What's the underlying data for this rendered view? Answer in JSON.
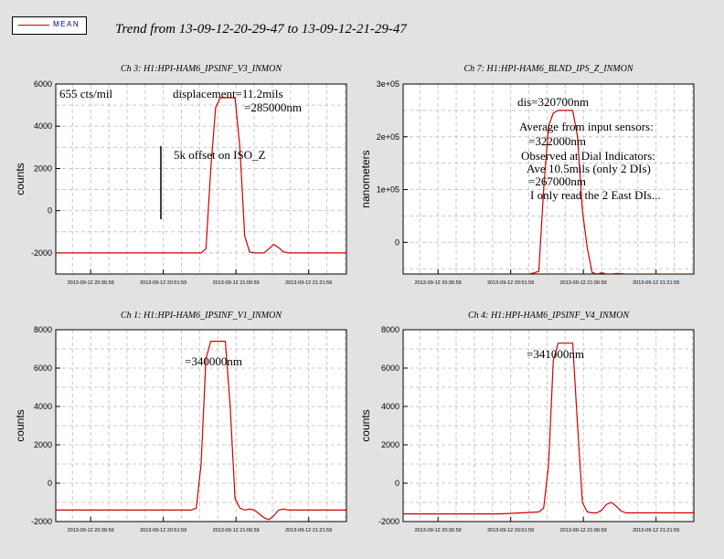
{
  "legend": {
    "label": "MEAN",
    "color": "#d00000"
  },
  "title": "Trend from 13-09-12-20-29-47 to 13-09-12-21-29-47",
  "chart_data": [
    {
      "type": "line",
      "title": "Ch 3: H1:HPI-HAM6_IPSINF_V3_INMON",
      "ylabel": "counts",
      "ylim": [
        -3000,
        6000
      ],
      "yticks": [
        -2000,
        0,
        2000,
        4000,
        6000
      ],
      "ytick_labels": [
        "-2000",
        "0",
        "2000",
        "4000",
        "6000"
      ],
      "xticks": [
        "2013-09-12 20:36:59",
        "2013-09-12 20:51:59",
        "2013-09-12 21:06:59",
        "2013-09-12 21:21:59"
      ],
      "x": [
        0,
        30,
        31,
        32,
        33,
        34,
        35,
        36,
        37,
        38,
        39,
        40,
        41,
        42,
        43,
        44,
        45,
        46,
        47,
        48,
        49,
        50,
        51,
        52,
        53,
        54,
        56,
        58,
        60
      ],
      "series": [
        {
          "values": [
            -2000,
            -2000,
            -1800,
            2000,
            4900,
            5350,
            5350,
            5350,
            5350,
            3000,
            -1200,
            -1950,
            -2000,
            -2000,
            -2000,
            -1800,
            -1600,
            -1750,
            -1950,
            -2000,
            -2000,
            -2000,
            -2000,
            -2000,
            -2000,
            -2000,
            -2000,
            -2000,
            -2000
          ],
          "color": "#d00000"
        }
      ],
      "annotations": [
        "655 cts/mil",
        "displacement=11.2mils",
        "=285000nm",
        "5k offset on ISO_Z"
      ]
    },
    {
      "type": "line",
      "title": "Ch 7: H1:HPI-HAM6_BLND_IPS_Z_INMON",
      "ylabel": "nanometers",
      "ylim": [
        -60000,
        300000
      ],
      "yticks": [
        0,
        100000,
        200000,
        300000
      ],
      "ytick_labels": [
        "0",
        "1e+05",
        "2e+05",
        "3e+05"
      ],
      "xticks": [
        "2013-09-12 20:36:59",
        "2013-09-12 20:51:59",
        "2013-09-12 21:06:59",
        "2013-09-12 21:21:59"
      ],
      "x": [
        26,
        27,
        28,
        29,
        30,
        31,
        32,
        33,
        34,
        35,
        36,
        37,
        38,
        39,
        40,
        41,
        42,
        43,
        44,
        46,
        50,
        55,
        60
      ],
      "series": [
        {
          "values": [
            -60000,
            -58000,
            -55000,
            100000,
            220000,
            245000,
            250000,
            250000,
            250000,
            250000,
            200000,
            60000,
            -10000,
            -57000,
            -60000,
            -58000,
            -60000,
            -60000,
            -59000,
            -60000,
            -60000,
            -60000,
            -60000
          ],
          "color": "#d00000"
        }
      ],
      "annotations": [
        "dis=320700nm",
        "Average from input sensors:",
        "=322000nm",
        "Observed at Dial Indicators:",
        "Ave 10.5mils (only 2 DIs)",
        "=267000nm",
        "I only read the 2 East DIs..."
      ]
    },
    {
      "type": "line",
      "title": "Ch 1: H1:HPI-HAM6_IPSINF_V1_INMON",
      "ylabel": "counts",
      "ylim": [
        -2000,
        8000
      ],
      "yticks": [
        -2000,
        0,
        2000,
        4000,
        6000,
        8000
      ],
      "ytick_labels": [
        "-2000",
        "0",
        "2000",
        "4000",
        "6000",
        "8000"
      ],
      "xticks": [
        "2013-09-12 20:36:59",
        "2013-09-12 20:51:59",
        "2013-09-12 21:06:59",
        "2013-09-12 21:21:59"
      ],
      "x": [
        0,
        28,
        29,
        30,
        31,
        32,
        33,
        34,
        35,
        36,
        37,
        38,
        39,
        40,
        41,
        42,
        43,
        44,
        45,
        46,
        47,
        48,
        49,
        50,
        55,
        60
      ],
      "series": [
        {
          "values": [
            -1400,
            -1400,
            -1300,
            1000,
            6500,
            7400,
            7400,
            7400,
            7400,
            4000,
            -800,
            -1300,
            -1400,
            -1350,
            -1400,
            -1600,
            -1800,
            -1900,
            -1700,
            -1400,
            -1350,
            -1400,
            -1400,
            -1400,
            -1400,
            -1400
          ],
          "color": "#d00000"
        }
      ],
      "annotations": [
        "=340000nm"
      ]
    },
    {
      "type": "line",
      "title": "Ch 4: H1:HPI-HAM6_IPSINF_V4_INMON",
      "ylabel": "counts",
      "ylim": [
        -2000,
        8000
      ],
      "yticks": [
        -2000,
        0,
        2000,
        4000,
        6000,
        8000
      ],
      "ytick_labels": [
        "-2000",
        "0",
        "2000",
        "4000",
        "6000",
        "8000"
      ],
      "xticks": [
        "2013-09-12 20:36:59",
        "2013-09-12 20:51:59",
        "2013-09-12 21:06:59",
        "2013-09-12 21:21:59"
      ],
      "x": [
        0,
        20,
        28,
        29,
        30,
        31,
        32,
        33,
        34,
        35,
        36,
        37,
        38,
        39,
        40,
        41,
        42,
        43,
        44,
        45,
        46,
        47,
        48,
        49,
        50,
        55,
        60
      ],
      "series": [
        {
          "values": [
            -1600,
            -1600,
            -1500,
            -1300,
            900,
            6400,
            7300,
            7300,
            7300,
            7300,
            3000,
            -1000,
            -1500,
            -1550,
            -1550,
            -1400,
            -1100,
            -1000,
            -1200,
            -1450,
            -1550,
            -1550,
            -1550,
            -1550,
            -1550,
            -1550,
            -1550
          ],
          "color": "#d00000"
        }
      ],
      "annotations": [
        "=341000nm"
      ]
    }
  ]
}
